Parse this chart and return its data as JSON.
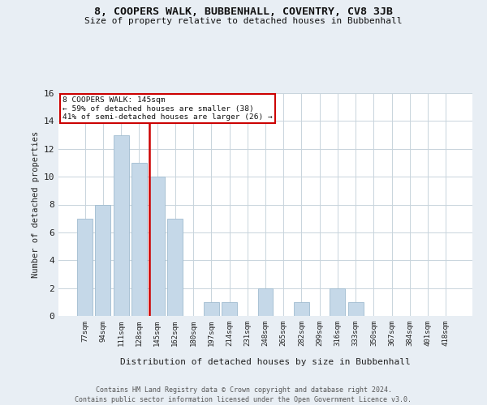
{
  "title": "8, COOPERS WALK, BUBBENHALL, COVENTRY, CV8 3JB",
  "subtitle": "Size of property relative to detached houses in Bubbenhall",
  "xlabel": "Distribution of detached houses by size in Bubbenhall",
  "ylabel": "Number of detached properties",
  "categories": [
    "77sqm",
    "94sqm",
    "111sqm",
    "128sqm",
    "145sqm",
    "162sqm",
    "180sqm",
    "197sqm",
    "214sqm",
    "231sqm",
    "248sqm",
    "265sqm",
    "282sqm",
    "299sqm",
    "316sqm",
    "333sqm",
    "350sqm",
    "367sqm",
    "384sqm",
    "401sqm",
    "418sqm"
  ],
  "values": [
    7,
    8,
    13,
    11,
    10,
    7,
    0,
    1,
    1,
    0,
    2,
    0,
    1,
    0,
    2,
    1,
    0,
    0,
    0,
    0,
    0
  ],
  "highlight_index": 4,
  "highlight_color": "#cc0000",
  "bar_color": "#c5d8e8",
  "bar_edge_color": "#a0bcd0",
  "ylim": [
    0,
    16
  ],
  "yticks": [
    0,
    2,
    4,
    6,
    8,
    10,
    12,
    14,
    16
  ],
  "annotation_line1": "8 COOPERS WALK: 145sqm",
  "annotation_line2": "← 59% of detached houses are smaller (38)",
  "annotation_line3": "41% of semi-detached houses are larger (26) →",
  "footer1": "Contains HM Land Registry data © Crown copyright and database right 2024.",
  "footer2": "Contains public sector information licensed under the Open Government Licence v3.0.",
  "bg_color": "#e8eef4",
  "plot_bg_color": "#ffffff",
  "grid_color": "#c8d4dc"
}
